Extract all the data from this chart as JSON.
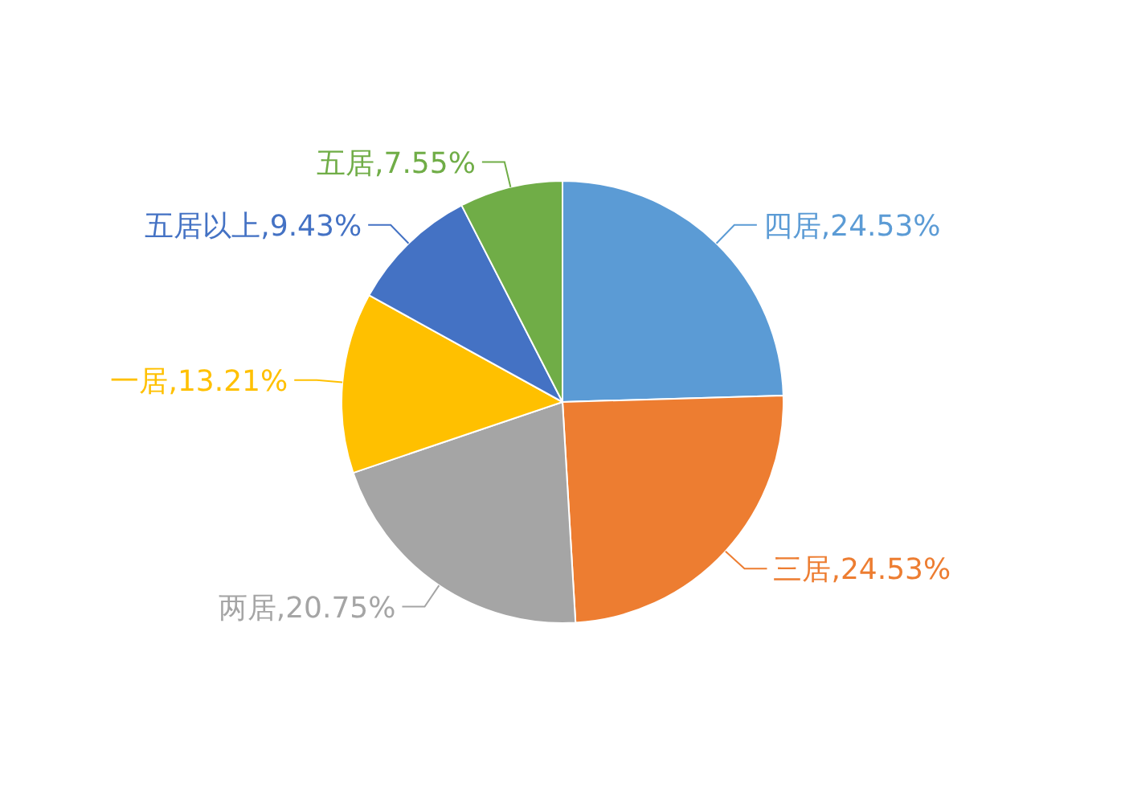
{
  "chart_data": {
    "type": "pie",
    "categories": [
      "四居",
      "三居",
      "两居",
      "一居",
      "五居以上",
      "五居"
    ],
    "values": [
      24.53,
      24.53,
      20.75,
      13.21,
      9.43,
      7.55
    ],
    "colors": [
      "#5b9bd5",
      "#ed7d31",
      "#a5a5a5",
      "#ffc000",
      "#4472c4",
      "#70ad47"
    ],
    "value_labels": [
      "24.53%",
      "24.53%",
      "20.75%",
      "13.21%",
      "9.43%",
      "7.55%"
    ]
  }
}
